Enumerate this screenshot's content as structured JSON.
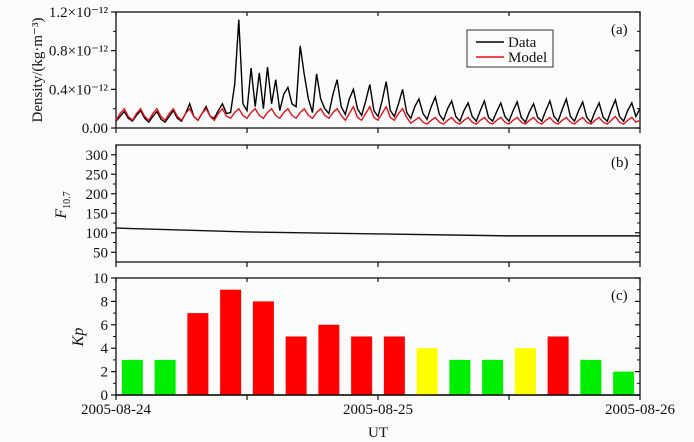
{
  "chart_data": [
    {
      "panel": "(a)",
      "type": "line",
      "ylabel": "Density/(kg·m⁻³)",
      "ylim": [
        0,
        1.2
      ],
      "ytick_labels": [
        "0.00",
        "0.4×10⁻¹²",
        "0.8×10⁻¹²",
        "1.2×10⁻¹²"
      ],
      "yticks": [
        0,
        0.4,
        0.8,
        1.2
      ],
      "x_unit": "hours since 2005-08-24 00:00 UT",
      "x_step_hours": 0.375,
      "legend": {
        "placement": "top-right",
        "entries": [
          "Data",
          "Model"
        ]
      },
      "series": [
        {
          "name": "Data",
          "color": "#000000",
          "values": [
            0.07,
            0.12,
            0.17,
            0.1,
            0.07,
            0.13,
            0.18,
            0.1,
            0.06,
            0.12,
            0.17,
            0.09,
            0.06,
            0.12,
            0.18,
            0.1,
            0.07,
            0.15,
            0.25,
            0.12,
            0.08,
            0.15,
            0.22,
            0.12,
            0.1,
            0.18,
            0.25,
            0.15,
            0.16,
            0.45,
            1.12,
            0.25,
            0.18,
            0.62,
            0.22,
            0.57,
            0.2,
            0.63,
            0.25,
            0.5,
            0.18,
            0.35,
            0.42,
            0.25,
            0.22,
            0.85,
            0.55,
            0.3,
            0.16,
            0.56,
            0.3,
            0.2,
            0.15,
            0.35,
            0.5,
            0.22,
            0.14,
            0.3,
            0.4,
            0.2,
            0.13,
            0.28,
            0.45,
            0.18,
            0.12,
            0.28,
            0.48,
            0.18,
            0.12,
            0.25,
            0.4,
            0.16,
            0.1,
            0.22,
            0.3,
            0.15,
            0.09,
            0.22,
            0.32,
            0.14,
            0.08,
            0.2,
            0.28,
            0.12,
            0.07,
            0.18,
            0.26,
            0.12,
            0.07,
            0.18,
            0.28,
            0.11,
            0.07,
            0.17,
            0.26,
            0.12,
            0.07,
            0.18,
            0.27,
            0.11,
            0.06,
            0.17,
            0.25,
            0.11,
            0.07,
            0.18,
            0.28,
            0.12,
            0.07,
            0.19,
            0.3,
            0.12,
            0.07,
            0.18,
            0.27,
            0.11,
            0.06,
            0.17,
            0.26,
            0.11,
            0.07,
            0.19,
            0.29,
            0.12,
            0.07,
            0.18,
            0.26,
            0.12,
            0.2
          ]
        },
        {
          "name": "Model",
          "color": "#e8101a",
          "values": [
            0.08,
            0.15,
            0.2,
            0.12,
            0.08,
            0.15,
            0.2,
            0.12,
            0.08,
            0.15,
            0.2,
            0.12,
            0.08,
            0.15,
            0.2,
            0.12,
            0.08,
            0.15,
            0.2,
            0.12,
            0.08,
            0.15,
            0.2,
            0.12,
            0.08,
            0.15,
            0.2,
            0.12,
            0.1,
            0.16,
            0.2,
            0.13,
            0.1,
            0.16,
            0.2,
            0.13,
            0.1,
            0.16,
            0.2,
            0.13,
            0.1,
            0.16,
            0.2,
            0.13,
            0.1,
            0.16,
            0.2,
            0.13,
            0.1,
            0.16,
            0.2,
            0.13,
            0.1,
            0.16,
            0.2,
            0.13,
            0.08,
            0.15,
            0.22,
            0.11,
            0.08,
            0.15,
            0.22,
            0.11,
            0.08,
            0.15,
            0.22,
            0.11,
            0.08,
            0.15,
            0.2,
            0.11,
            0.05,
            0.08,
            0.11,
            0.06,
            0.04,
            0.08,
            0.11,
            0.06,
            0.04,
            0.08,
            0.11,
            0.06,
            0.04,
            0.08,
            0.11,
            0.06,
            0.04,
            0.08,
            0.11,
            0.06,
            0.04,
            0.08,
            0.11,
            0.06,
            0.04,
            0.08,
            0.11,
            0.06,
            0.04,
            0.08,
            0.11,
            0.06,
            0.04,
            0.08,
            0.11,
            0.06,
            0.04,
            0.08,
            0.11,
            0.06,
            0.04,
            0.08,
            0.11,
            0.06,
            0.04,
            0.08,
            0.11,
            0.06,
            0.04,
            0.08,
            0.12,
            0.06,
            0.04,
            0.08,
            0.11,
            0.06,
            0.08
          ]
        }
      ]
    },
    {
      "panel": "(b)",
      "type": "line",
      "ylabel": "F",
      "ylabel_sub": "10.7",
      "ylim": [
        25,
        325
      ],
      "yticks": [
        50,
        100,
        150,
        200,
        250,
        300
      ],
      "ytick_labels": [
        "50",
        "100",
        "150",
        "200",
        "250",
        "300"
      ],
      "x_hours": [
        0,
        12,
        24,
        36,
        48
      ],
      "values": [
        112,
        102,
        97,
        92,
        92
      ]
    },
    {
      "panel": "(c)",
      "type": "bar",
      "ylabel": "Kp",
      "ylim": [
        0,
        10
      ],
      "yticks": [
        0,
        2,
        4,
        6,
        8,
        10
      ],
      "ytick_labels": [
        "0",
        "2",
        "4",
        "6",
        "8",
        "10"
      ],
      "bar_interval_hours": 3,
      "values": [
        3,
        3,
        7,
        9,
        8,
        5,
        6,
        5,
        5,
        4,
        3,
        3,
        4,
        5,
        3,
        2
      ],
      "colors": {
        "low": "#00ee00",
        "moderate": "#ffff00",
        "high": "#ff0000"
      }
    }
  ],
  "xaxis": {
    "label": "UT",
    "xlim_hours": [
      0,
      48
    ],
    "tick_labels": [
      "2005-08-24",
      "2005-08-25",
      "2005-08-26"
    ]
  }
}
